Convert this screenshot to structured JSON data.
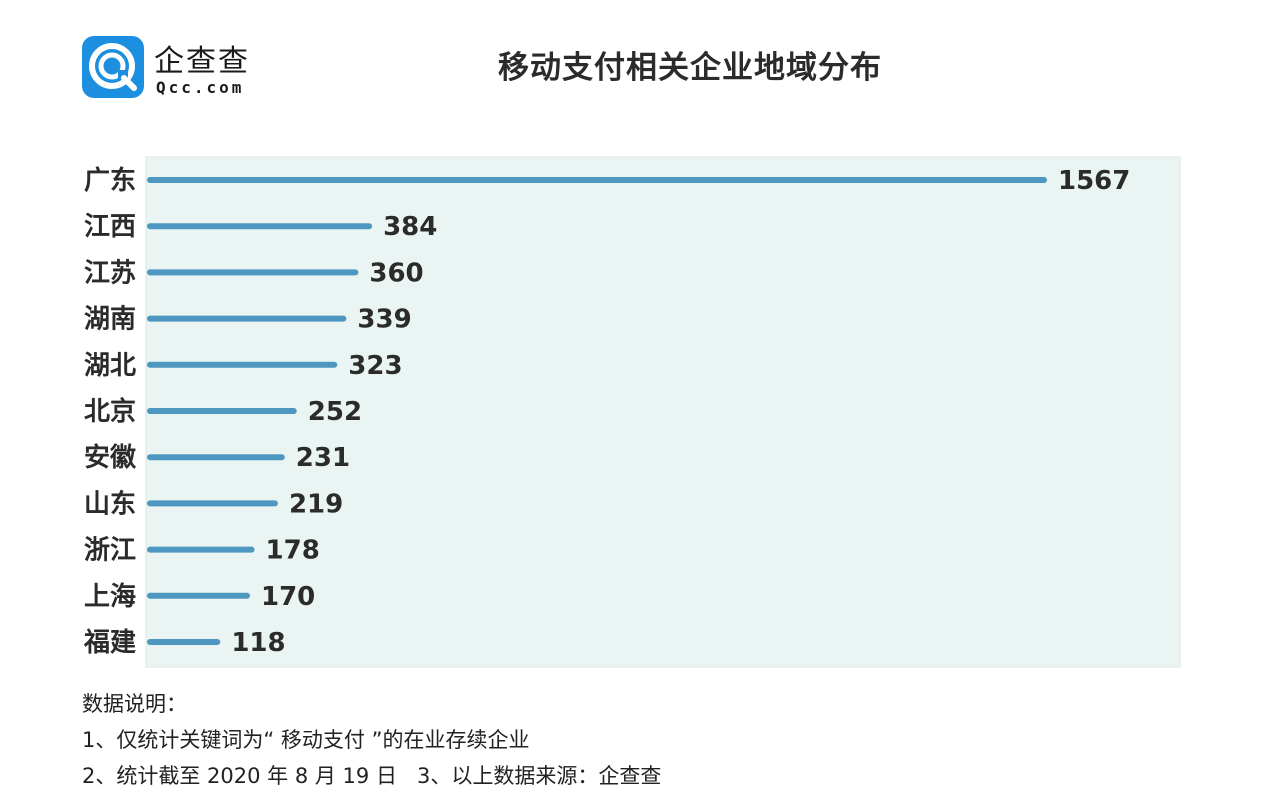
{
  "brand": {
    "name": "企查查",
    "domain": "Qcc.com",
    "logo_icon": "qcc-logo-icon",
    "color": "#1d8fe0"
  },
  "chart_data": {
    "type": "bar",
    "orientation": "horizontal",
    "title": "移动支付相关企业地域分布",
    "categories": [
      "广东",
      "江西",
      "江苏",
      "湖南",
      "湖北",
      "北京",
      "安徽",
      "山东",
      "浙江",
      "上海",
      "福建"
    ],
    "values": [
      1567,
      384,
      360,
      339,
      323,
      252,
      231,
      219,
      178,
      170,
      118
    ],
    "xlim": [
      0,
      1567
    ],
    "data_labels": true,
    "grid": false,
    "bar_color": "#4d97c0",
    "plot_background": "#eaf5f3"
  },
  "notes": {
    "heading": "数据说明：",
    "line1": "1、仅统计关键词为“ 移动支付 ”的在业存续企业",
    "line2": "2、统计截至 2020 年 8 月 19 日   3、以上数据来源：企查查"
  }
}
